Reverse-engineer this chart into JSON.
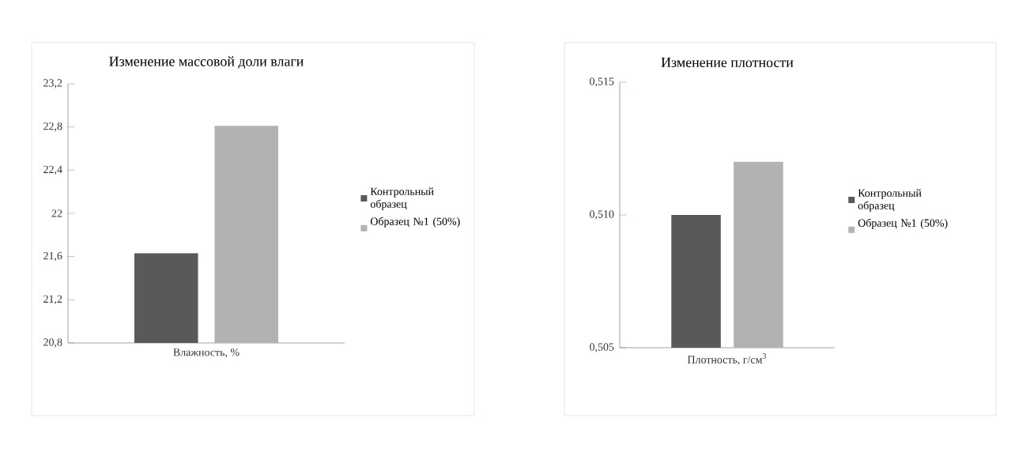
{
  "chart_data": [
    {
      "type": "bar",
      "title": "Изменение массовой доли влаги",
      "categories": [
        "Влажность, %"
      ],
      "series": [
        {
          "name": "Контрольный образец",
          "color": "#595959",
          "values": [
            21.63
          ]
        },
        {
          "name": "Образец №1 (50%)",
          "color": "#b2b2b2",
          "values": [
            22.81
          ]
        }
      ],
      "ylim": [
        20.8,
        23.2
      ],
      "yticks": [
        {
          "value": 20.8,
          "label": "20,8"
        },
        {
          "value": 21.2,
          "label": "21,2"
        },
        {
          "value": 21.6,
          "label": "21,6"
        },
        {
          "value": 22,
          "label": "22"
        },
        {
          "value": 22.4,
          "label": "22,4"
        },
        {
          "value": 22.8,
          "label": "22,8"
        },
        {
          "value": 23.2,
          "label": "23,2"
        }
      ],
      "grid": false,
      "legend": "right"
    },
    {
      "type": "bar",
      "title": "Изменение плотности",
      "categories": [
        "Плотность, г/см$^{3}$"
      ],
      "series": [
        {
          "name": "Контрольный образец",
          "color": "#595959",
          "values": [
            0.51
          ]
        },
        {
          "name": "Образец №1 (50%)",
          "color": "#b2b2b2",
          "values": [
            0.512
          ]
        }
      ],
      "ylim": [
        0.505,
        0.515
      ],
      "yticks": [
        {
          "value": 0.505,
          "label": "0,505"
        },
        {
          "value": 0.51,
          "label": "0,510"
        },
        {
          "value": 0.515,
          "label": "0,515"
        }
      ],
      "grid": false,
      "legend": "right"
    }
  ]
}
